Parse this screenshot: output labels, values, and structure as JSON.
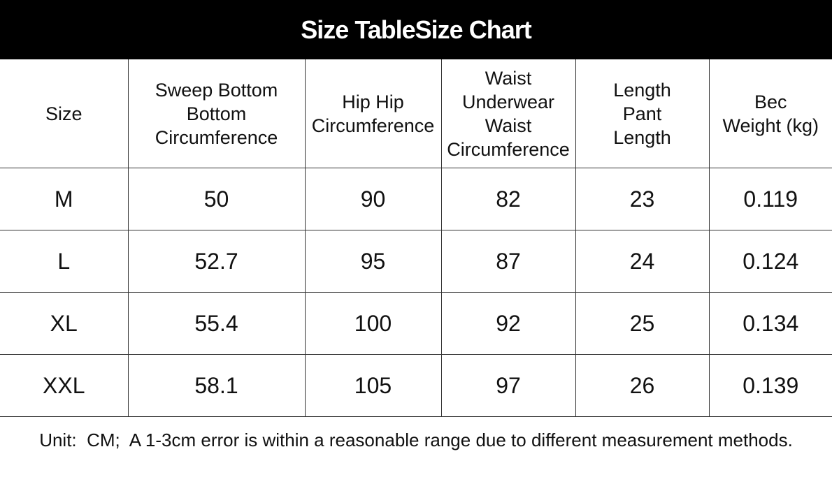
{
  "header": {
    "title": "Size TableSize Chart"
  },
  "table": {
    "columns": [
      [
        "Size"
      ],
      [
        "Sweep Bottom",
        "Bottom",
        "Circumference"
      ],
      [
        "Hip Hip",
        "Circumference"
      ],
      [
        "Waist",
        "Underwear",
        "Waist",
        "Circumference"
      ],
      [
        "Length",
        "Pant",
        "Length"
      ],
      [
        "Bec",
        "Weight (kg)"
      ]
    ],
    "rows": [
      [
        "M",
        "50",
        "90",
        "82",
        "23",
        "0.119"
      ],
      [
        "L",
        "52.7",
        "95",
        "87",
        "24",
        "0.124"
      ],
      [
        "XL",
        "55.4",
        "100",
        "92",
        "25",
        "0.134"
      ],
      [
        "XXL",
        "58.1",
        "105",
        "97",
        "26",
        "0.139"
      ]
    ]
  },
  "footer": {
    "note": "Unit:  CM;  A 1-3cm error is within a reasonable range due to different measurement methods."
  }
}
